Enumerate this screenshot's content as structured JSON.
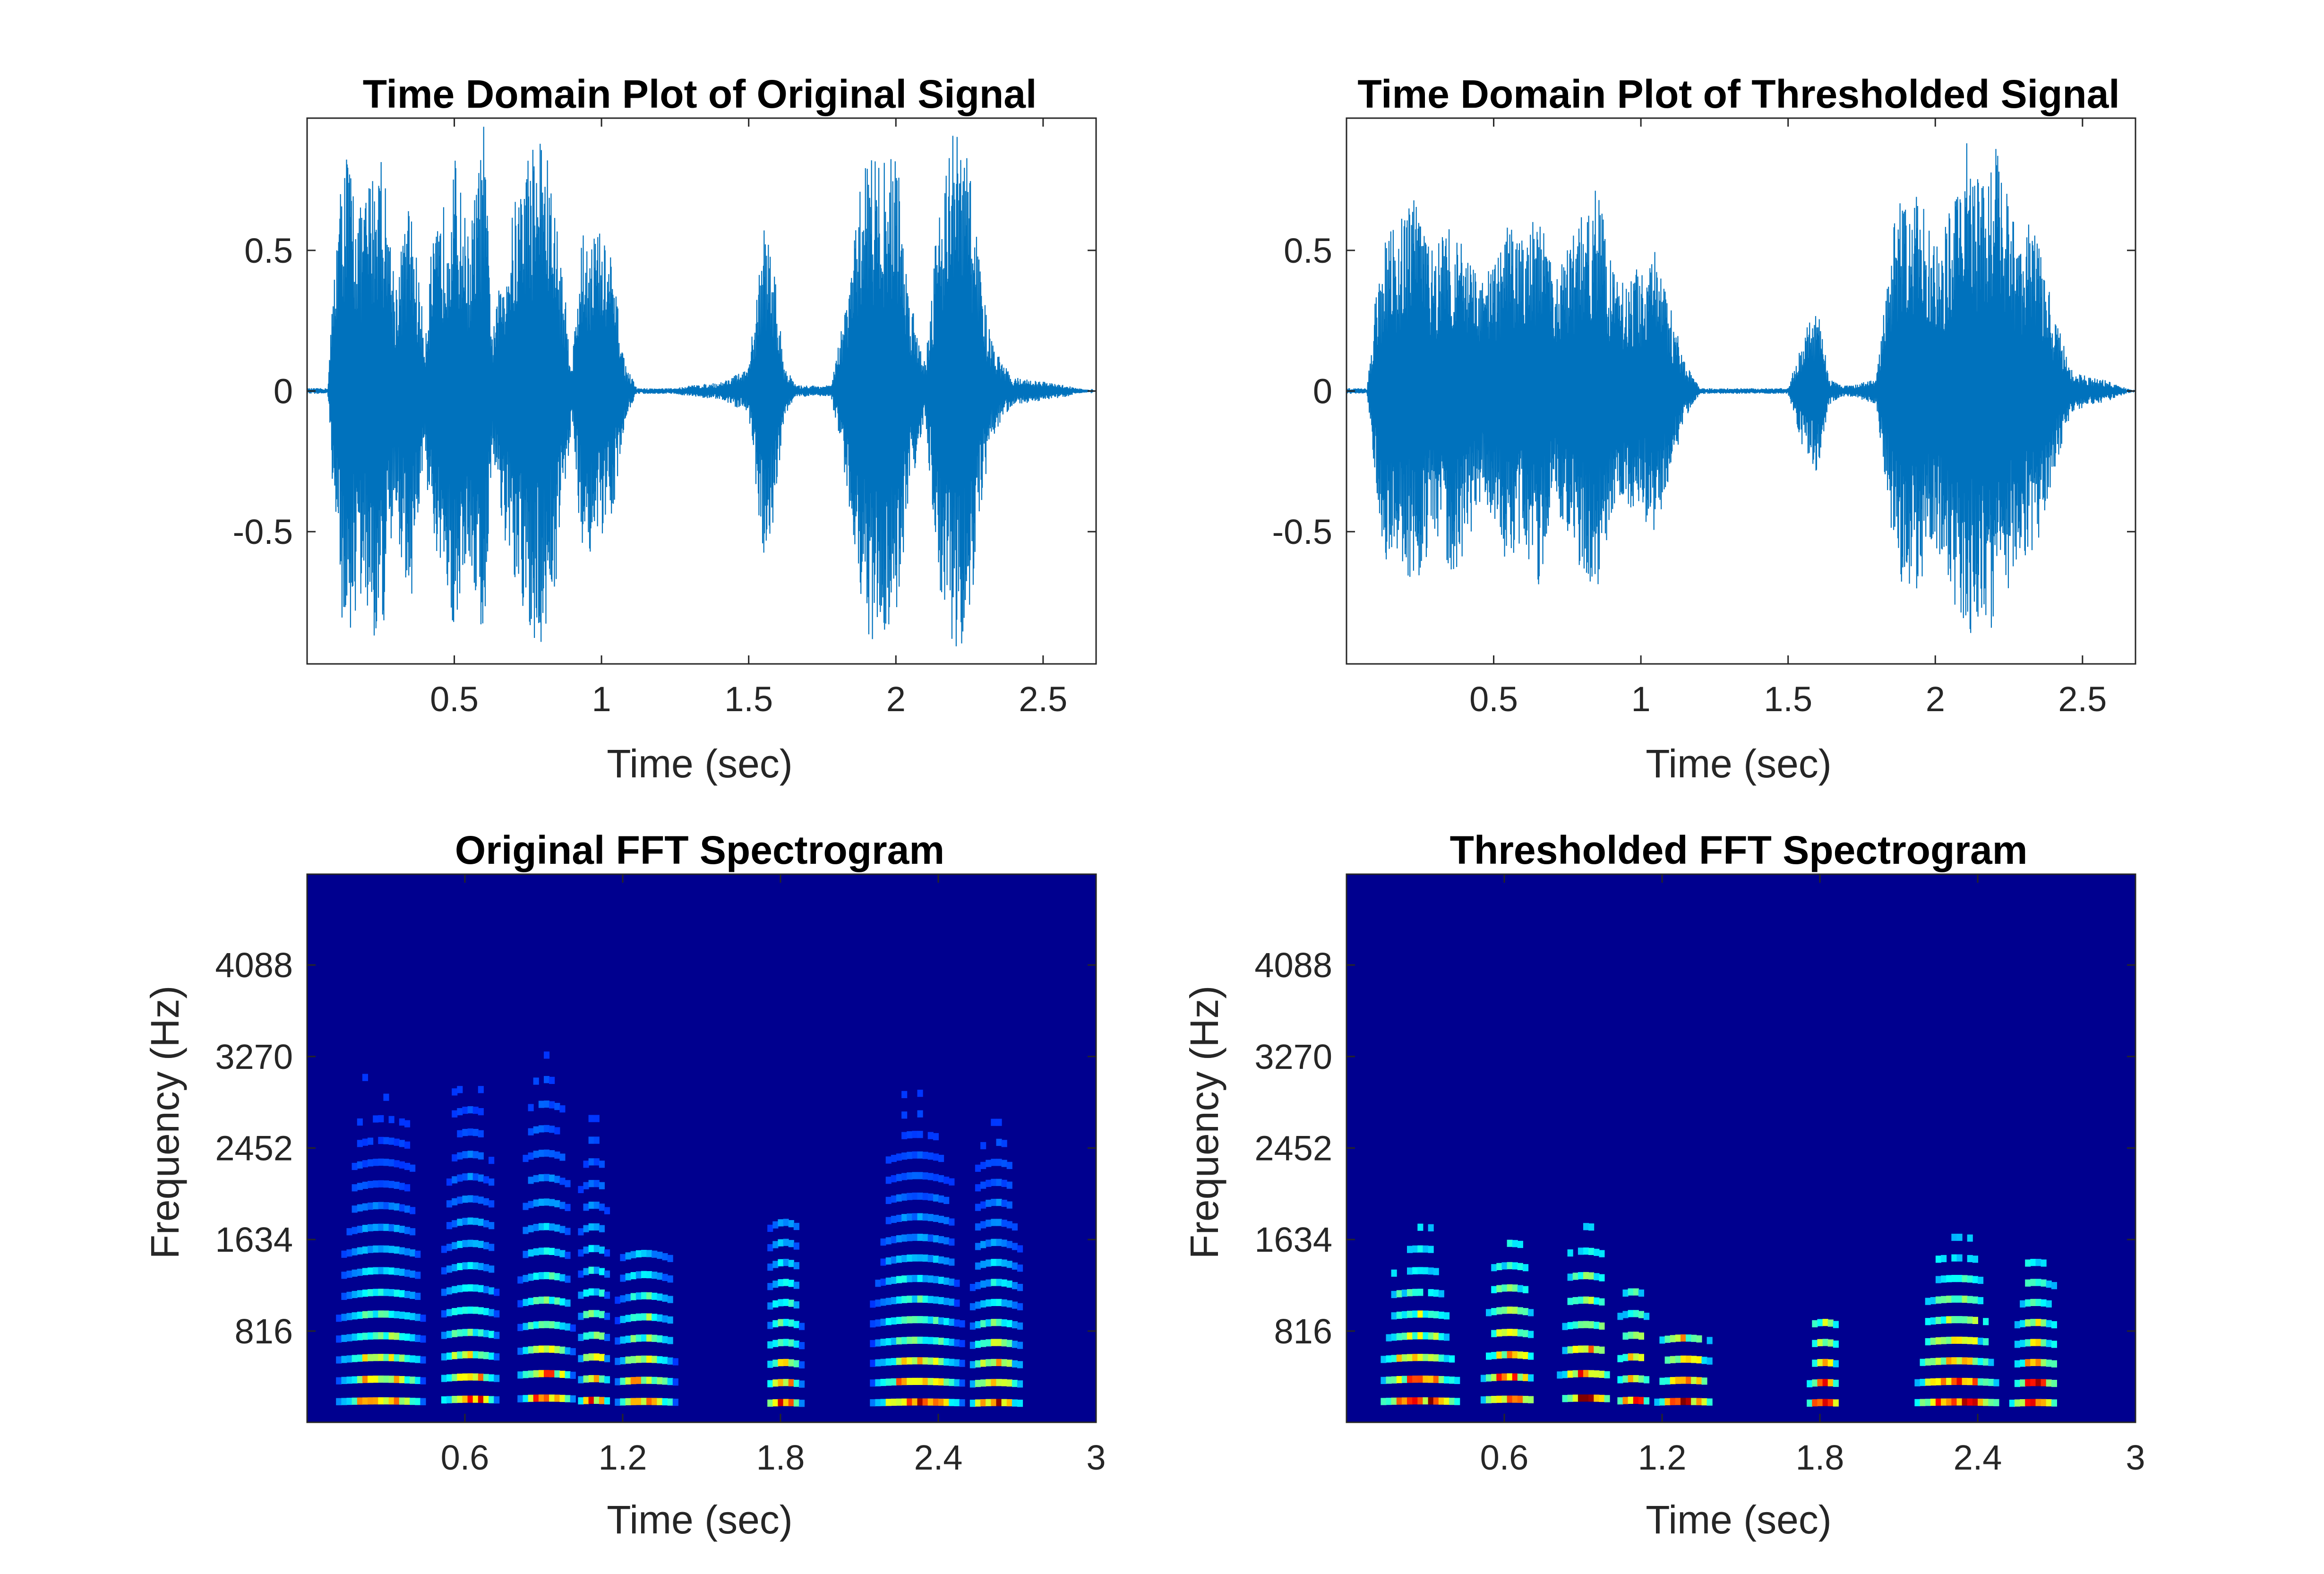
{
  "colors": {
    "line": "#0072BD",
    "axes": "#262626",
    "spectrogram_background": "#00008F",
    "colormap": "jet"
  },
  "chart_data": [
    {
      "type": "line",
      "title": "Time Domain Plot of Original Signal",
      "xlabel": "Time (sec)",
      "ylabel": "",
      "xlim": [
        0.0,
        2.68
      ],
      "ylim": [
        -0.97,
        0.97
      ],
      "xticks": [
        0.5,
        1,
        1.5,
        2,
        2.5
      ],
      "xtick_labels": [
        "0.5",
        "1",
        "1.5",
        "2",
        "2.5"
      ],
      "yticks": [
        -0.5,
        0,
        0.5
      ],
      "ytick_labels": [
        "-0.5",
        "0",
        "0.5"
      ],
      "grid": false,
      "series": [
        {
          "envelope": {
            "t": [
              0.0,
              0.07,
              0.1,
              0.13,
              0.18,
              0.25,
              0.3,
              0.35,
              0.4,
              0.42,
              0.45,
              0.5,
              0.55,
              0.6,
              0.63,
              0.67,
              0.72,
              0.76,
              0.8,
              0.85,
              0.9,
              0.93,
              0.98,
              1.03,
              1.08,
              1.12,
              1.17,
              1.2,
              1.25,
              1.3,
              1.4,
              1.5,
              1.55,
              1.58,
              1.62,
              1.66,
              1.72,
              1.78,
              1.82,
              1.86,
              1.9,
              1.95,
              2.0,
              2.04,
              2.1,
              2.15,
              2.2,
              2.25,
              2.28,
              2.32,
              2.36,
              2.4,
              2.46,
              2.52,
              2.58,
              2.62,
              2.68
            ],
            "upper": [
              0.01,
              0.01,
              0.6,
              0.9,
              0.65,
              0.9,
              0.4,
              0.7,
              0.2,
              0.5,
              0.6,
              0.85,
              0.55,
              0.95,
              0.2,
              0.5,
              0.75,
              0.9,
              0.95,
              0.6,
              0.1,
              0.55,
              0.6,
              0.5,
              0.1,
              0.01,
              0.01,
              0.01,
              0.01,
              0.02,
              0.03,
              0.08,
              0.6,
              0.5,
              0.1,
              0.02,
              0.02,
              0.02,
              0.25,
              0.55,
              0.92,
              0.8,
              0.9,
              0.4,
              0.1,
              0.75,
              0.95,
              0.85,
              0.5,
              0.2,
              0.1,
              0.05,
              0.04,
              0.03,
              0.02,
              0.01,
              0.0
            ],
            "lower": [
              -0.01,
              -0.01,
              -0.6,
              -0.95,
              -0.75,
              -0.95,
              -0.45,
              -0.8,
              -0.2,
              -0.55,
              -0.7,
              -0.85,
              -0.6,
              -0.93,
              -0.2,
              -0.55,
              -0.8,
              -0.9,
              -0.93,
              -0.65,
              -0.1,
              -0.55,
              -0.6,
              -0.5,
              -0.1,
              -0.01,
              -0.01,
              -0.01,
              -0.01,
              -0.02,
              -0.03,
              -0.08,
              -0.6,
              -0.5,
              -0.1,
              -0.02,
              -0.02,
              -0.02,
              -0.25,
              -0.55,
              -0.93,
              -0.85,
              -0.9,
              -0.4,
              -0.1,
              -0.75,
              -0.95,
              -0.85,
              -0.5,
              -0.2,
              -0.1,
              -0.05,
              -0.04,
              -0.03,
              -0.02,
              -0.01,
              0.0
            ]
          }
        }
      ]
    },
    {
      "type": "line",
      "title": "Time Domain Plot of Thresholded Signal",
      "xlabel": "Time (sec)",
      "ylabel": "",
      "xlim": [
        0.0,
        2.68
      ],
      "ylim": [
        -0.97,
        0.97
      ],
      "xticks": [
        0.5,
        1,
        1.5,
        2,
        2.5
      ],
      "xtick_labels": [
        "0.5",
        "1",
        "1.5",
        "2",
        "2.5"
      ],
      "yticks": [
        -0.5,
        0,
        0.5
      ],
      "ytick_labels": [
        "-0.5",
        "0",
        "0.5"
      ],
      "grid": false,
      "series": [
        {
          "envelope": {
            "t": [
              0.0,
              0.07,
              0.1,
              0.13,
              0.18,
              0.23,
              0.3,
              0.35,
              0.4,
              0.45,
              0.5,
              0.55,
              0.6,
              0.65,
              0.7,
              0.75,
              0.8,
              0.85,
              0.9,
              0.95,
              1.0,
              1.05,
              1.1,
              1.15,
              1.2,
              1.3,
              1.4,
              1.5,
              1.55,
              1.6,
              1.64,
              1.68,
              1.72,
              1.8,
              1.86,
              1.9,
              1.95,
              2.0,
              2.05,
              2.1,
              2.16,
              2.2,
              2.24,
              2.28,
              2.32,
              2.36,
              2.4,
              2.46,
              2.52,
              2.58,
              2.62,
              2.68
            ],
            "upper": [
              0.01,
              0.01,
              0.35,
              0.55,
              0.6,
              0.7,
              0.5,
              0.65,
              0.5,
              0.4,
              0.45,
              0.6,
              0.55,
              0.65,
              0.45,
              0.5,
              0.65,
              0.75,
              0.45,
              0.4,
              0.45,
              0.5,
              0.3,
              0.1,
              0.01,
              0.01,
              0.01,
              0.01,
              0.2,
              0.3,
              0.05,
              0.02,
              0.02,
              0.05,
              0.6,
              0.75,
              0.7,
              0.5,
              0.65,
              0.9,
              0.75,
              0.9,
              0.75,
              0.55,
              0.6,
              0.5,
              0.3,
              0.08,
              0.05,
              0.04,
              0.02,
              0.0
            ],
            "lower": [
              -0.01,
              -0.01,
              -0.35,
              -0.6,
              -0.6,
              -0.7,
              -0.55,
              -0.65,
              -0.6,
              -0.4,
              -0.45,
              -0.65,
              -0.55,
              -0.7,
              -0.45,
              -0.5,
              -0.65,
              -0.75,
              -0.45,
              -0.4,
              -0.45,
              -0.5,
              -0.3,
              -0.1,
              -0.01,
              -0.01,
              -0.01,
              -0.01,
              -0.2,
              -0.3,
              -0.05,
              -0.02,
              -0.02,
              -0.05,
              -0.6,
              -0.75,
              -0.7,
              -0.55,
              -0.7,
              -0.9,
              -0.8,
              -0.9,
              -0.75,
              -0.6,
              -0.6,
              -0.5,
              -0.3,
              -0.08,
              -0.05,
              -0.04,
              -0.02,
              0.0
            ]
          }
        }
      ]
    },
    {
      "type": "heatmap",
      "title": "Original FFT Spectrogram",
      "xlabel": "Time (sec)",
      "ylabel": "Frequency (Hz)",
      "xlim": [
        0.0,
        3.0
      ],
      "ylim": [
        0,
        4900
      ],
      "xticks": [
        0.6,
        1.2,
        1.8,
        2.4,
        3
      ],
      "xtick_labels": [
        "0.6",
        "1.2",
        "1.8",
        "2.4",
        "3"
      ],
      "yticks": [
        816,
        1634,
        2452,
        3270,
        4088
      ],
      "ytick_labels": [
        "816",
        "1634",
        "2452",
        "3270",
        "4088"
      ],
      "colormap": "jet",
      "grid": false,
      "segments": [
        {
          "t0": 0.09,
          "t1": 0.45,
          "f0": 185,
          "df": 185,
          "harmonics": 18
        },
        {
          "t0": 0.49,
          "t1": 0.73,
          "f0": 200,
          "df": 190,
          "harmonics": 18
        },
        {
          "t0": 0.78,
          "t1": 1.01,
          "f0": 210,
          "df": 210,
          "harmonics": 16
        },
        {
          "t0": 1.01,
          "t1": 1.15,
          "f0": 190,
          "df": 185,
          "harmonics": 14
        },
        {
          "t0": 1.15,
          "t1": 1.4,
          "f0": 180,
          "df": 180,
          "harmonics": 8
        },
        {
          "t0": 1.73,
          "t1": 1.88,
          "f0": 170,
          "df": 170,
          "harmonics": 10
        },
        {
          "t0": 2.12,
          "t1": 2.5,
          "f0": 175,
          "df": 175,
          "harmonics": 18
        },
        {
          "t0": 2.5,
          "t1": 2.72,
          "f0": 170,
          "df": 170,
          "harmonics": 20
        }
      ]
    },
    {
      "type": "heatmap",
      "title": "Thresholded FFT Spectrogram",
      "xlabel": "Time (sec)",
      "ylabel": "Frequency (Hz)",
      "xlim": [
        0.0,
        3.0
      ],
      "ylim": [
        0,
        4900
      ],
      "xticks": [
        0.6,
        1.2,
        1.8,
        2.4,
        3
      ],
      "xtick_labels": [
        "0.6",
        "1.2",
        "1.8",
        "2.4",
        "3"
      ],
      "yticks": [
        816,
        1634,
        2452,
        3270,
        4088
      ],
      "ytick_labels": [
        "816",
        "1634",
        "2452",
        "3270",
        "4088"
      ],
      "colormap": "jet",
      "grid": false,
      "segments": [
        {
          "t0": 0.09,
          "t1": 0.45,
          "f0": 185,
          "df": 185,
          "harmonics": 10
        },
        {
          "t0": 0.49,
          "t1": 0.73,
          "f0": 200,
          "df": 190,
          "harmonics": 8
        },
        {
          "t0": 0.78,
          "t1": 1.01,
          "f0": 210,
          "df": 210,
          "harmonics": 8
        },
        {
          "t0": 1.01,
          "t1": 1.15,
          "f0": 190,
          "df": 185,
          "harmonics": 6
        },
        {
          "t0": 1.15,
          "t1": 1.4,
          "f0": 180,
          "df": 180,
          "harmonics": 4
        },
        {
          "t0": 1.73,
          "t1": 1.88,
          "f0": 170,
          "df": 170,
          "harmonics": 5
        },
        {
          "t0": 2.12,
          "t1": 2.5,
          "f0": 175,
          "df": 175,
          "harmonics": 9
        },
        {
          "t0": 2.5,
          "t1": 2.72,
          "f0": 170,
          "df": 170,
          "harmonics": 8
        }
      ]
    }
  ]
}
